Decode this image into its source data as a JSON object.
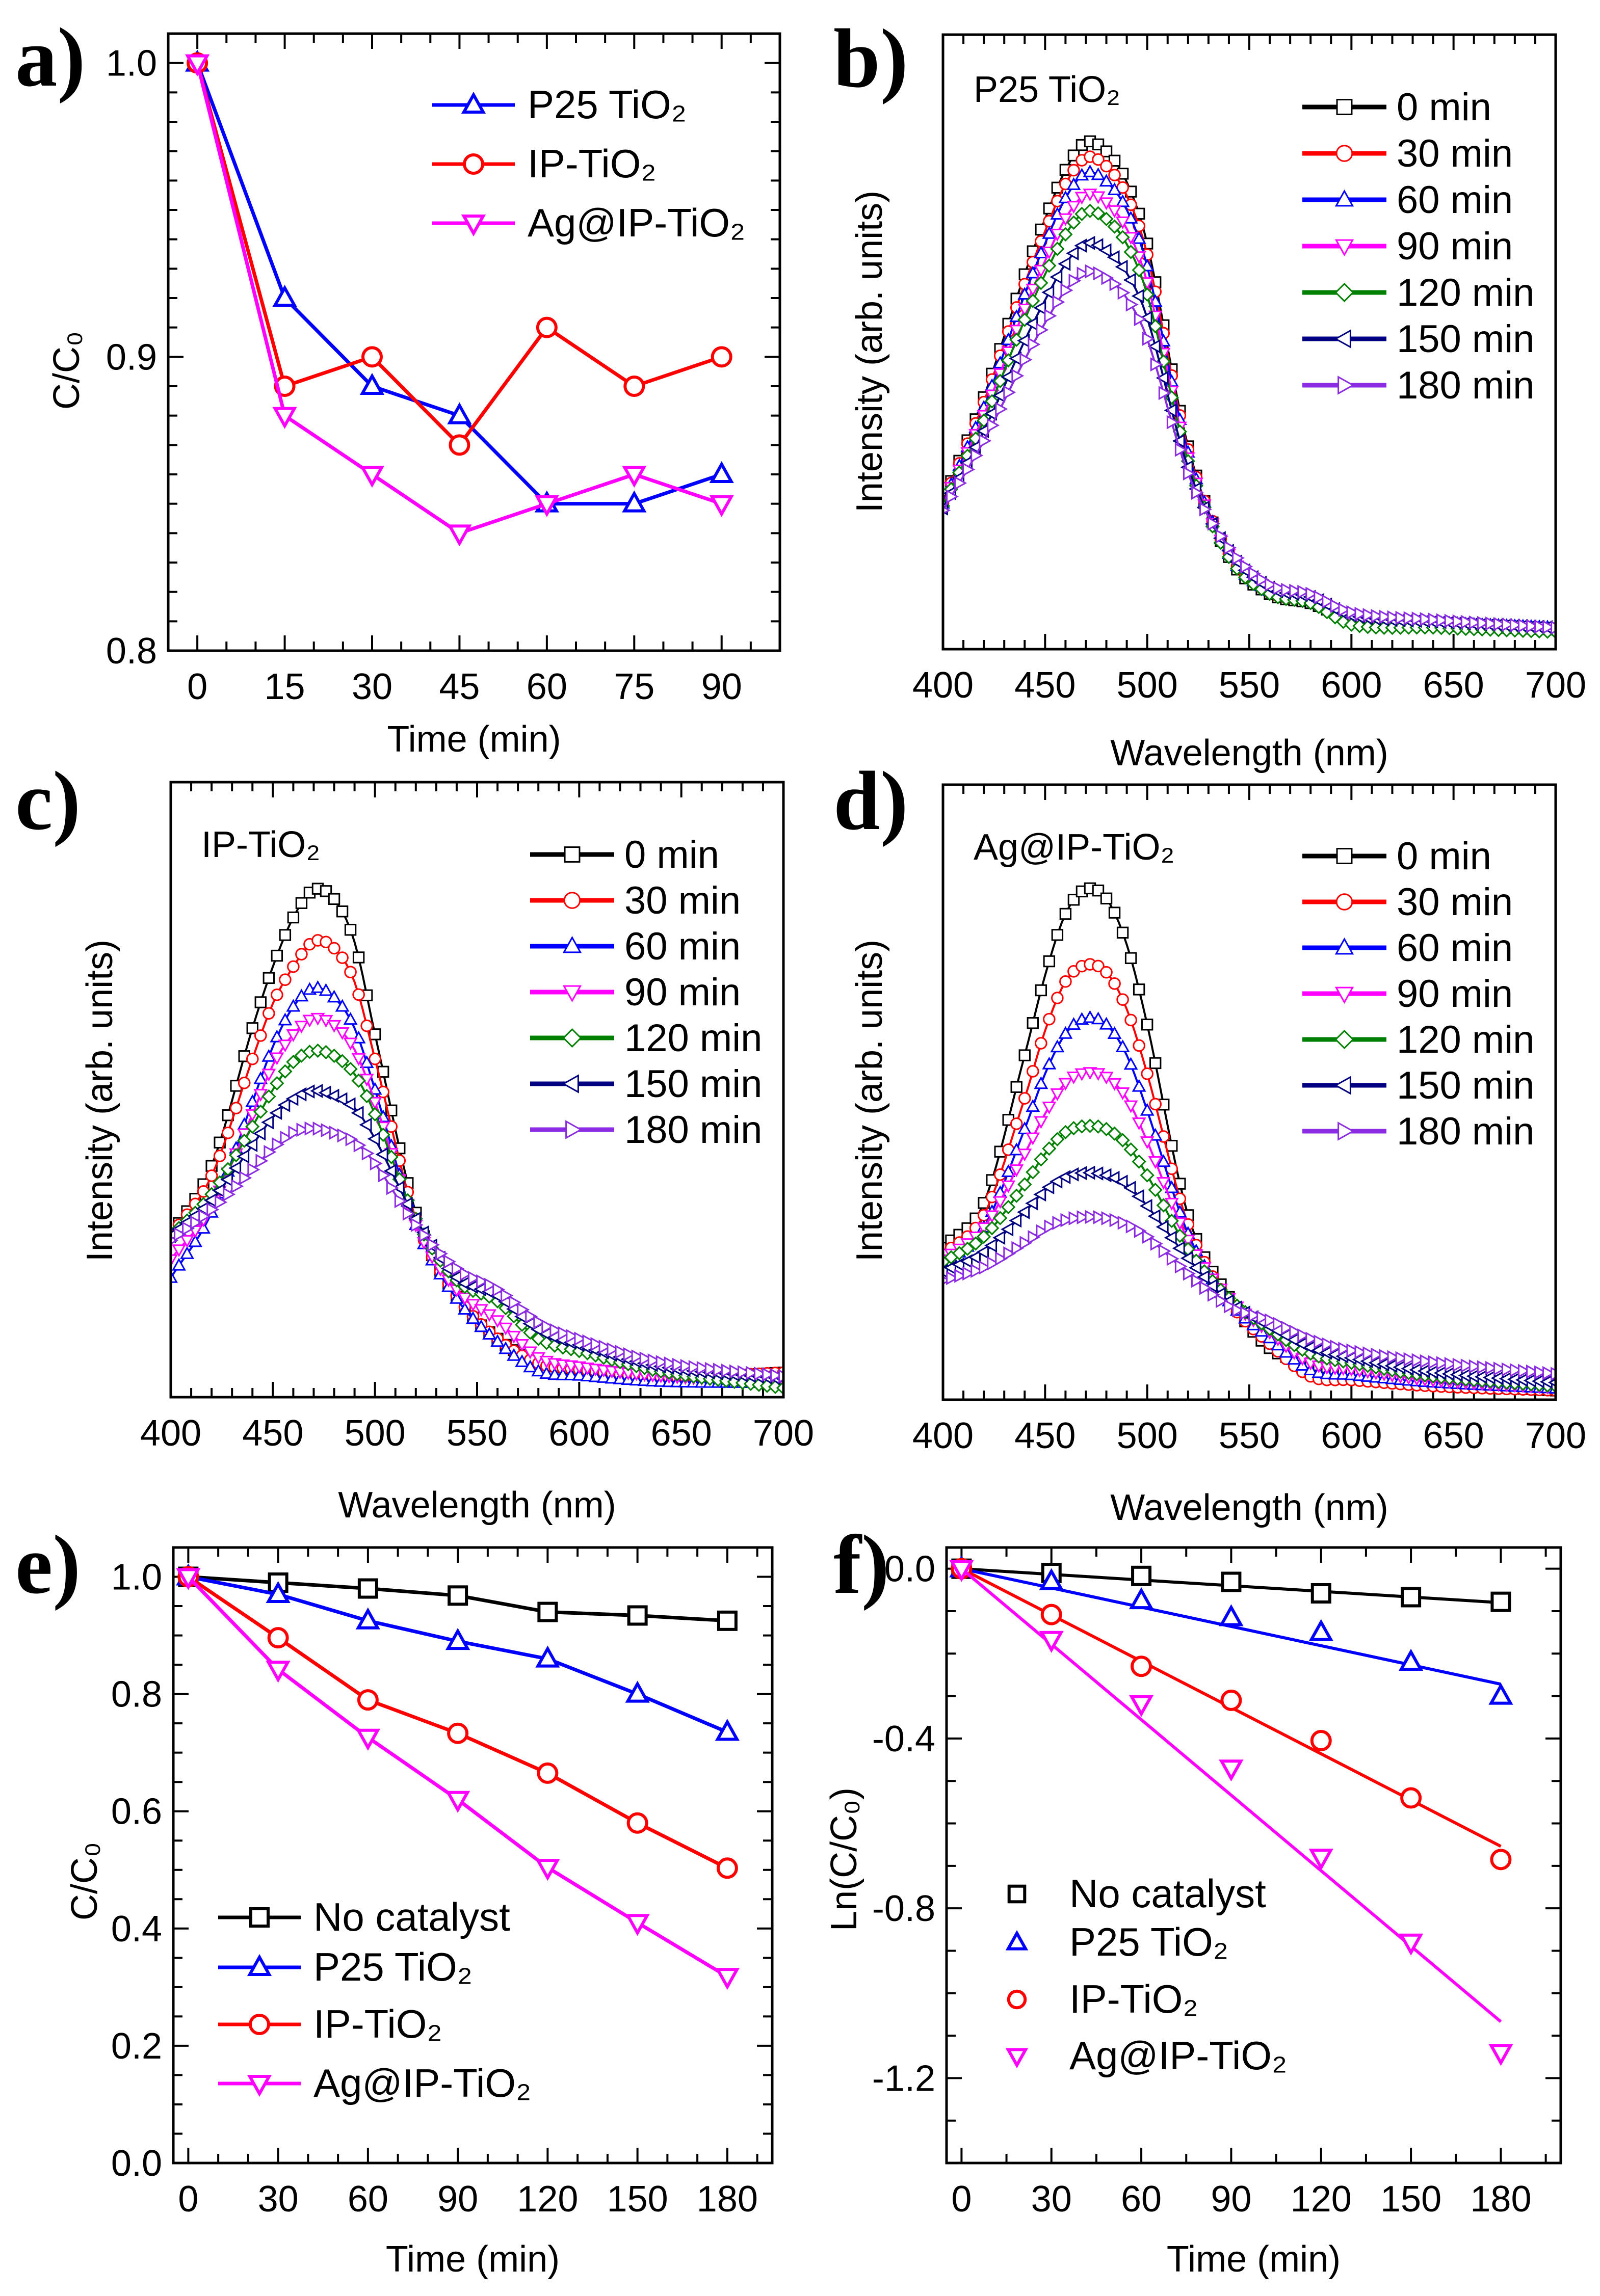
{
  "chart_data": [
    {
      "panel": "a)",
      "type": "line",
      "xlabel": "Time (min)",
      "ylabel": "C/C₀",
      "xlim": [
        -5,
        100
      ],
      "ylim": [
        0.8,
        1.01
      ],
      "xticks": [
        "0",
        "15",
        "30",
        "45",
        "60",
        "75",
        "90"
      ],
      "yticks": [
        "0.8",
        "0.9",
        "1.0"
      ],
      "grid": false,
      "legend_position": "top-right",
      "series": [
        {
          "name": "P25 TiO₂",
          "color": "#0000ff",
          "marker": "triangle-up",
          "x": [
            0,
            15,
            30,
            45,
            60,
            75,
            90
          ],
          "y": [
            1.0,
            0.92,
            0.89,
            0.88,
            0.85,
            0.85,
            0.86
          ]
        },
        {
          "name": "IP-TiO₂",
          "color": "#ff0000",
          "marker": "circle",
          "x": [
            0,
            15,
            30,
            45,
            60,
            75,
            90
          ],
          "y": [
            1.0,
            0.89,
            0.9,
            0.87,
            0.91,
            0.89,
            0.9
          ]
        },
        {
          "name": "Ag@IP-TiO₂",
          "color": "#ff00ff",
          "marker": "triangle-down",
          "x": [
            0,
            15,
            30,
            45,
            60,
            75,
            90
          ],
          "y": [
            1.0,
            0.88,
            0.86,
            0.84,
            0.85,
            0.86,
            0.85
          ]
        }
      ]
    },
    {
      "panel": "b)",
      "type": "line",
      "annotation": "P25 TiO₂",
      "xlabel": "Wavelength (nm)",
      "ylabel": "Intensity (arb. units)",
      "xlim": [
        400,
        700
      ],
      "ylim": [
        0,
        1
      ],
      "xticks": [
        "400",
        "450",
        "500",
        "550",
        "600",
        "650",
        "700"
      ],
      "yticks": [],
      "grid": false,
      "legend_position": "top-right",
      "x": [
        400,
        420,
        440,
        450,
        460,
        470,
        480,
        490,
        500,
        520,
        540,
        560,
        580,
        600,
        640,
        700
      ],
      "series": [
        {
          "name": "0 min",
          "color": "#000000",
          "marker": "square",
          "y": [
            0.24,
            0.41,
            0.61,
            0.7,
            0.78,
            0.825,
            0.81,
            0.76,
            0.66,
            0.33,
            0.15,
            0.09,
            0.075,
            0.05,
            0.04,
            0.032
          ]
        },
        {
          "name": "30 min",
          "color": "#ff0000",
          "marker": "circle",
          "y": [
            0.238,
            0.402,
            0.594,
            0.68,
            0.757,
            0.8,
            0.786,
            0.738,
            0.642,
            0.325,
            0.155,
            0.092,
            0.078,
            0.05,
            0.042,
            0.033
          ]
        },
        {
          "name": "60 min",
          "color": "#0000ff",
          "marker": "triangle-up",
          "y": [
            0.237,
            0.393,
            0.577,
            0.66,
            0.734,
            0.775,
            0.761,
            0.715,
            0.623,
            0.32,
            0.155,
            0.095,
            0.08,
            0.052,
            0.043,
            0.035
          ]
        },
        {
          "name": "90 min",
          "color": "#ff00ff",
          "marker": "triangle-down",
          "y": [
            0.235,
            0.381,
            0.554,
            0.632,
            0.701,
            0.74,
            0.727,
            0.684,
            0.597,
            0.312,
            0.155,
            0.095,
            0.08,
            0.05,
            0.042,
            0.033
          ]
        },
        {
          "name": "120 min",
          "color": "#008000",
          "marker": "diamond",
          "y": [
            0.233,
            0.372,
            0.536,
            0.61,
            0.675,
            0.712,
            0.7,
            0.659,
            0.577,
            0.306,
            0.15,
            0.09,
            0.075,
            0.04,
            0.035,
            0.028
          ]
        },
        {
          "name": "150 min",
          "color": "#000080",
          "marker": "triangle-left",
          "y": [
            0.229,
            0.355,
            0.502,
            0.568,
            0.627,
            0.66,
            0.649,
            0.612,
            0.539,
            0.296,
            0.16,
            0.1,
            0.085,
            0.055,
            0.045,
            0.035
          ]
        },
        {
          "name": "180 min",
          "color": "#8b2be2",
          "marker": "triangle-right",
          "y": [
            0.226,
            0.339,
            0.471,
            0.531,
            0.584,
            0.614,
            0.604,
            0.571,
            0.505,
            0.286,
            0.165,
            0.105,
            0.09,
            0.06,
            0.048,
            0.035
          ]
        }
      ]
    },
    {
      "panel": "c)",
      "type": "line",
      "annotation": "IP-TiO₂",
      "xlabel": "Wavelength (nm)",
      "ylabel": "Intensity (arb. units)",
      "xlim": [
        400,
        700
      ],
      "ylim": [
        0,
        1
      ],
      "xticks": [
        "400",
        "450",
        "500",
        "550",
        "600",
        "650",
        "700"
      ],
      "yticks": [],
      "grid": false,
      "legend_position": "top-right",
      "x": [
        400,
        420,
        440,
        450,
        460,
        470,
        480,
        490,
        500,
        520,
        540,
        560,
        580,
        600,
        640,
        700
      ],
      "series": [
        {
          "name": "0 min",
          "color": "#000000",
          "marker": "square",
          "y": [
            0.262,
            0.376,
            0.6,
            0.7,
            0.78,
            0.825,
            0.81,
            0.74,
            0.59,
            0.3,
            0.163,
            0.095,
            0.057,
            0.045,
            0.03,
            0.04
          ]
        },
        {
          "name": "30 min",
          "color": "#ff0000",
          "marker": "circle",
          "y": [
            0.262,
            0.36,
            0.55,
            0.64,
            0.7,
            0.741,
            0.73,
            0.675,
            0.55,
            0.29,
            0.165,
            0.095,
            0.055,
            0.045,
            0.032,
            0.04
          ]
        },
        {
          "name": "60 min",
          "color": "#0000ff",
          "marker": "triangle-up",
          "y": [
            0.194,
            0.3,
            0.48,
            0.57,
            0.635,
            0.665,
            0.65,
            0.6,
            0.5,
            0.28,
            0.16,
            0.09,
            0.042,
            0.035,
            0.025,
            0.023
          ]
        },
        {
          "name": "90 min",
          "color": "#ff00ff",
          "marker": "triangle-down",
          "y": [
            0.224,
            0.31,
            0.46,
            0.54,
            0.59,
            0.616,
            0.605,
            0.565,
            0.48,
            0.28,
            0.175,
            0.125,
            0.065,
            0.05,
            0.035,
            0.025
          ]
        },
        {
          "name": "120 min",
          "color": "#008000",
          "marker": "diamond",
          "y": [
            0.262,
            0.33,
            0.44,
            0.5,
            0.545,
            0.563,
            0.555,
            0.525,
            0.46,
            0.29,
            0.19,
            0.156,
            0.095,
            0.075,
            0.042,
            0.015
          ]
        },
        {
          "name": "150 min",
          "color": "#000080",
          "marker": "triangle-left",
          "y": [
            0.262,
            0.32,
            0.41,
            0.455,
            0.485,
            0.498,
            0.49,
            0.47,
            0.42,
            0.29,
            0.195,
            0.165,
            0.11,
            0.085,
            0.05,
            0.03
          ]
        },
        {
          "name": "180 min",
          "color": "#8b2be2",
          "marker": "triangle-right",
          "y": [
            0.255,
            0.305,
            0.37,
            0.405,
            0.43,
            0.437,
            0.43,
            0.415,
            0.38,
            0.28,
            0.209,
            0.175,
            0.122,
            0.095,
            0.057,
            0.034
          ]
        }
      ]
    },
    {
      "panel": "d)",
      "type": "line",
      "annotation": "Ag@IP-TiO₂",
      "xlabel": "Wavelength (nm)",
      "ylabel": "Intensity (arb. units)",
      "xlim": [
        400,
        700
      ],
      "ylim": [
        0,
        1
      ],
      "xticks": [
        "400",
        "450",
        "500",
        "550",
        "600",
        "650",
        "700"
      ],
      "yticks": [],
      "grid": false,
      "legend_position": "top-right",
      "x": [
        400,
        420,
        440,
        450,
        460,
        470,
        480,
        490,
        500,
        520,
        540,
        560,
        580,
        600,
        640,
        700
      ],
      "series": [
        {
          "name": "0 min",
          "color": "#000000",
          "marker": "square",
          "y": [
            0.247,
            0.32,
            0.56,
            0.69,
            0.79,
            0.83,
            0.815,
            0.74,
            0.61,
            0.3,
            0.167,
            0.084,
            0.06,
            0.045,
            0.027,
            0.015
          ]
        },
        {
          "name": "30 min",
          "color": "#ff0000",
          "marker": "circle",
          "y": [
            0.236,
            0.3,
            0.49,
            0.6,
            0.68,
            0.707,
            0.695,
            0.635,
            0.53,
            0.285,
            0.16,
            0.091,
            0.038,
            0.032,
            0.022,
            0.015
          ]
        },
        {
          "name": "60 min",
          "color": "#0000ff",
          "marker": "triangle-up",
          "y": [
            0.22,
            0.28,
            0.44,
            0.53,
            0.595,
            0.62,
            0.61,
            0.56,
            0.47,
            0.27,
            0.16,
            0.1,
            0.048,
            0.04,
            0.028,
            0.018
          ]
        },
        {
          "name": "90 min",
          "color": "#ff00ff",
          "marker": "triangle-down",
          "y": [
            0.228,
            0.28,
            0.4,
            0.465,
            0.515,
            0.532,
            0.525,
            0.49,
            0.42,
            0.26,
            0.165,
            0.11,
            0.06,
            0.05,
            0.032,
            0.02
          ]
        },
        {
          "name": "120 min",
          "color": "#008000",
          "marker": "diamond",
          "y": [
            0.224,
            0.265,
            0.35,
            0.4,
            0.435,
            0.445,
            0.44,
            0.415,
            0.365,
            0.245,
            0.165,
            0.115,
            0.075,
            0.06,
            0.038,
            0.022
          ]
        },
        {
          "name": "150 min",
          "color": "#000080",
          "marker": "triangle-left",
          "y": [
            0.209,
            0.24,
            0.305,
            0.34,
            0.362,
            0.369,
            0.365,
            0.35,
            0.315,
            0.23,
            0.16,
            0.12,
            0.085,
            0.068,
            0.045,
            0.028
          ]
        },
        {
          "name": "180 min",
          "color": "#8b2be2",
          "marker": "triangle-right",
          "y": [
            0.194,
            0.215,
            0.255,
            0.278,
            0.292,
            0.297,
            0.295,
            0.285,
            0.265,
            0.205,
            0.152,
            0.129,
            0.099,
            0.08,
            0.061,
            0.042
          ]
        }
      ]
    },
    {
      "panel": "e)",
      "type": "line",
      "xlabel": "Time (min)",
      "ylabel": "C/C₀",
      "xlim": [
        -5,
        195
      ],
      "ylim": [
        0,
        1.05
      ],
      "xticks": [
        "0",
        "30",
        "60",
        "90",
        "120",
        "150",
        "180"
      ],
      "yticks": [
        "0.0",
        "0.2",
        "0.4",
        "0.6",
        "0.8",
        "1.0"
      ],
      "grid": false,
      "legend_position": "bottom-left",
      "series": [
        {
          "name": "No catalyst",
          "color": "#000000",
          "marker": "square",
          "x": [
            0,
            30,
            60,
            90,
            120,
            150,
            180
          ],
          "y": [
            1.0,
            0.99,
            0.98,
            0.968,
            0.94,
            0.934,
            0.925
          ]
        },
        {
          "name": "P25 TiO₂",
          "color": "#0000ff",
          "marker": "triangle-up",
          "x": [
            0,
            30,
            60,
            90,
            120,
            150,
            180
          ],
          "y": [
            1.0,
            0.97,
            0.925,
            0.89,
            0.86,
            0.8,
            0.735
          ]
        },
        {
          "name": "IP-TiO₂",
          "color": "#ff0000",
          "marker": "circle",
          "x": [
            0,
            30,
            60,
            90,
            120,
            150,
            180
          ],
          "y": [
            1.0,
            0.896,
            0.79,
            0.733,
            0.665,
            0.58,
            0.503
          ]
        },
        {
          "name": "Ag@IP-TiO₂",
          "color": "#ff00ff",
          "marker": "triangle-down",
          "x": [
            0,
            30,
            60,
            90,
            120,
            150,
            180
          ],
          "y": [
            1.0,
            0.842,
            0.726,
            0.62,
            0.504,
            0.41,
            0.318
          ]
        }
      ]
    },
    {
      "panel": "f)",
      "type": "scatter",
      "xlabel": "Time (min)",
      "ylabel": "Ln(C/C₀)",
      "xlim": [
        -5,
        200
      ],
      "ylim": [
        -1.4,
        0.05
      ],
      "xticks": [
        "0",
        "30",
        "60",
        "90",
        "120",
        "150",
        "180"
      ],
      "yticks": [
        "-1.2",
        "-0.8",
        "-0.4",
        "0.0"
      ],
      "grid": false,
      "legend_position": "bottom-left",
      "series": [
        {
          "name": "No catalyst",
          "color": "#000000",
          "marker": "square",
          "x": [
            0,
            30,
            60,
            90,
            120,
            150,
            180
          ],
          "y": [
            0,
            -0.01,
            -0.017,
            -0.031,
            -0.058,
            -0.067,
            -0.078
          ],
          "fit": {
            "x": [
              0,
              180
            ],
            "y": [
              0,
              -0.08
            ]
          }
        },
        {
          "name": "P25 TiO₂",
          "color": "#0000ff",
          "marker": "triangle-up",
          "x": [
            0,
            30,
            60,
            90,
            120,
            150,
            180
          ],
          "y": [
            0,
            -0.03,
            -0.075,
            -0.115,
            -0.15,
            -0.22,
            -0.3
          ],
          "fit": {
            "x": [
              0,
              180
            ],
            "y": [
              0,
              -0.272
            ]
          }
        },
        {
          "name": "IP-TiO₂",
          "color": "#ff0000",
          "marker": "circle",
          "x": [
            0,
            30,
            60,
            90,
            120,
            150,
            180
          ],
          "y": [
            0,
            -0.108,
            -0.23,
            -0.31,
            -0.405,
            -0.54,
            -0.685
          ],
          "fit": {
            "x": [
              0,
              180
            ],
            "y": [
              0,
              -0.654
            ]
          }
        },
        {
          "name": "Ag@IP-TiO₂",
          "color": "#ff00ff",
          "marker": "triangle-down",
          "x": [
            0,
            30,
            60,
            90,
            120,
            150,
            180
          ],
          "y": [
            0,
            -0.167,
            -0.318,
            -0.47,
            -0.68,
            -0.88,
            -1.14
          ],
          "fit": {
            "x": [
              0,
              180
            ],
            "y": [
              0,
              -1.067
            ]
          }
        }
      ]
    }
  ]
}
